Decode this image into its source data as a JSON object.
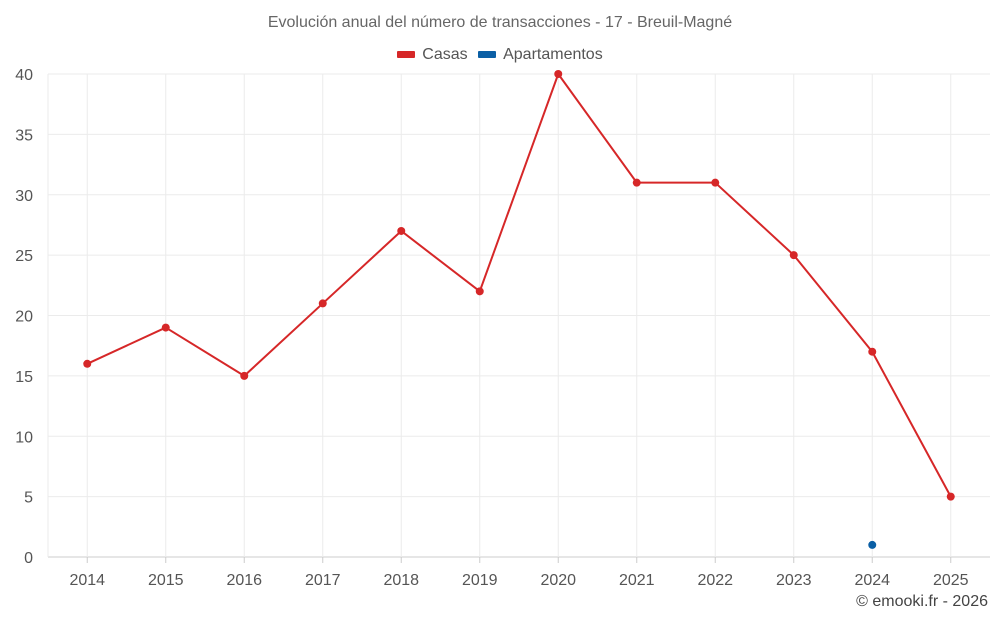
{
  "chart_data": {
    "type": "line",
    "title": "Evolución anual del número de transacciones - 17 - Breuil-Magné",
    "categories": [
      "2014",
      "2015",
      "2016",
      "2017",
      "2018",
      "2019",
      "2020",
      "2021",
      "2022",
      "2023",
      "2024",
      "2025"
    ],
    "ylim": [
      0,
      40
    ],
    "yticks": [
      0,
      5,
      10,
      15,
      20,
      25,
      30,
      35,
      40
    ],
    "grid": true,
    "legend_position": "top-center",
    "series": [
      {
        "name": "Casas",
        "color": "#d62728",
        "values": [
          16,
          19,
          15,
          21,
          27,
          22,
          40,
          31,
          31,
          25,
          17,
          5
        ]
      },
      {
        "name": "Apartamentos",
        "color": "#0b5fa5",
        "values": [
          null,
          null,
          null,
          null,
          null,
          null,
          null,
          null,
          null,
          null,
          1,
          null
        ]
      }
    ]
  },
  "credit": "© emooki.fr - 2026"
}
